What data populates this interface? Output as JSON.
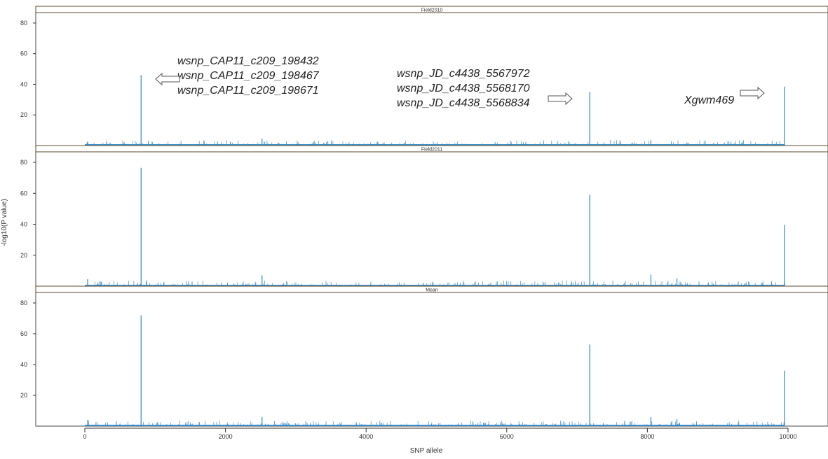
{
  "chart_data": {
    "type": "bar",
    "xlabel": "SNP allele",
    "ylabel": "-log10(P value)",
    "xlim": [
      -700,
      10500
    ],
    "ylim": [
      0,
      85
    ],
    "xticks": [
      "0",
      "2000",
      "4000",
      "6000",
      "8000",
      "10000"
    ],
    "yticks": [
      "20",
      "40",
      "60",
      "80"
    ],
    "color": "#2f86c8",
    "grid": false,
    "panels": [
      {
        "name": "Field2010",
        "peaks": [
          {
            "x": 800,
            "y": 46
          },
          {
            "x": 7180,
            "y": 35
          },
          {
            "x": 9950,
            "y": 38.5
          },
          {
            "x": 2520,
            "y": 4.5
          },
          {
            "x": 8050,
            "y": 3.5
          },
          {
            "x": 40,
            "y": 2.5
          }
        ],
        "annotations": [
          {
            "lines": [
              "wsnp_CAP11_c209_198432",
              "wsnp_CAP11_c209_198467",
              "wsnp_CAP11_c209_198671"
            ],
            "arrow": "left"
          },
          {
            "lines": [
              "wsnp_JD_c4438_5567972",
              "wsnp_JD_c4438_5568170",
              "wsnp_JD_c4438_5568834"
            ],
            "arrow": "right"
          },
          {
            "lines": [
              "Xgwm469"
            ],
            "arrow": "right"
          }
        ]
      },
      {
        "name": "Field2011",
        "peaks": [
          {
            "x": 800,
            "y": 76.5
          },
          {
            "x": 7180,
            "y": 59
          },
          {
            "x": 9950,
            "y": 39.5
          },
          {
            "x": 2520,
            "y": 7
          },
          {
            "x": 8050,
            "y": 7.5
          },
          {
            "x": 40,
            "y": 4.5
          },
          {
            "x": 8420,
            "y": 5
          }
        ],
        "annotations": []
      },
      {
        "name": "Mean",
        "peaks": [
          {
            "x": 800,
            "y": 72
          },
          {
            "x": 7180,
            "y": 53
          },
          {
            "x": 9950,
            "y": 36
          },
          {
            "x": 2520,
            "y": 6
          },
          {
            "x": 8050,
            "y": 6
          },
          {
            "x": 40,
            "y": 4
          },
          {
            "x": 8420,
            "y": 4.5
          }
        ],
        "annotations": []
      }
    ]
  }
}
